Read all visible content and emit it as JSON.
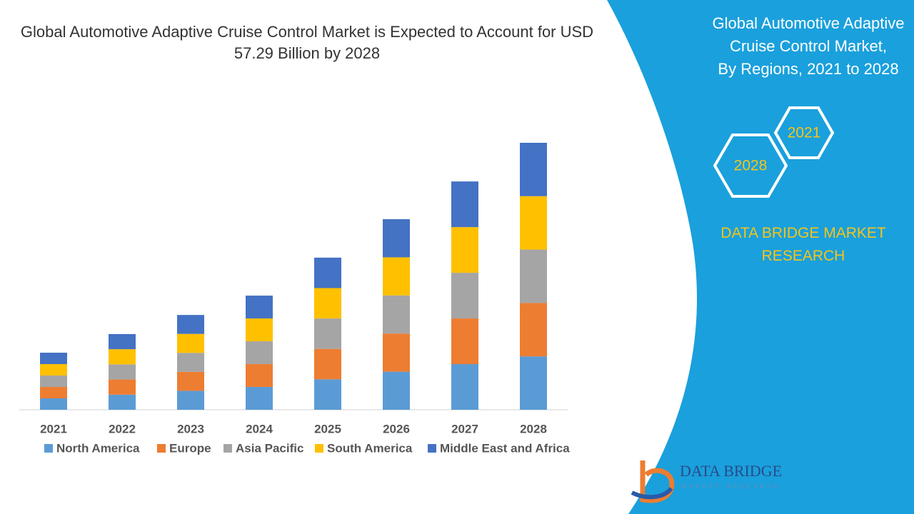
{
  "chart_data": {
    "type": "bar",
    "stacked": true,
    "title": "Global Automotive Adaptive Cruise Control Market is Expected to Account for USD 57.29 Billion by 2028",
    "categories": [
      "2021",
      "2022",
      "2023",
      "2024",
      "2025",
      "2026",
      "2027",
      "2028"
    ],
    "series": [
      {
        "name": "North America",
        "color": "#5b9bd5",
        "values": [
          2.45,
          3.25,
          4.07,
          4.9,
          6.53,
          8.18,
          9.8,
          11.46
        ]
      },
      {
        "name": "Europe",
        "color": "#ed7d31",
        "values": [
          2.45,
          3.25,
          4.07,
          4.9,
          6.53,
          8.18,
          9.8,
          11.46
        ]
      },
      {
        "name": "Asia Pacific",
        "color": "#a5a5a5",
        "values": [
          2.45,
          3.25,
          4.07,
          4.9,
          6.53,
          8.18,
          9.8,
          11.46
        ]
      },
      {
        "name": "South America",
        "color": "#ffc000",
        "values": [
          2.45,
          3.25,
          4.07,
          4.9,
          6.53,
          8.18,
          9.8,
          11.46
        ]
      },
      {
        "name": "Middle East and Africa",
        "color": "#4472c4",
        "values": [
          2.45,
          3.25,
          4.07,
          4.9,
          6.53,
          8.18,
          9.8,
          11.46
        ]
      }
    ],
    "legend": "bottom"
  },
  "panel": {
    "title_lines": [
      "Global Automotive Adaptive",
      "Cruise Control Market,",
      "By Regions, 2021 to 2028"
    ],
    "hexagons": [
      "2021",
      "2028"
    ],
    "brand": "DATA BRIDGE MARKET RESEARCH",
    "logo": {
      "name": "DATA BRIDGE",
      "tagline": "MARKET RESEARCH"
    }
  }
}
